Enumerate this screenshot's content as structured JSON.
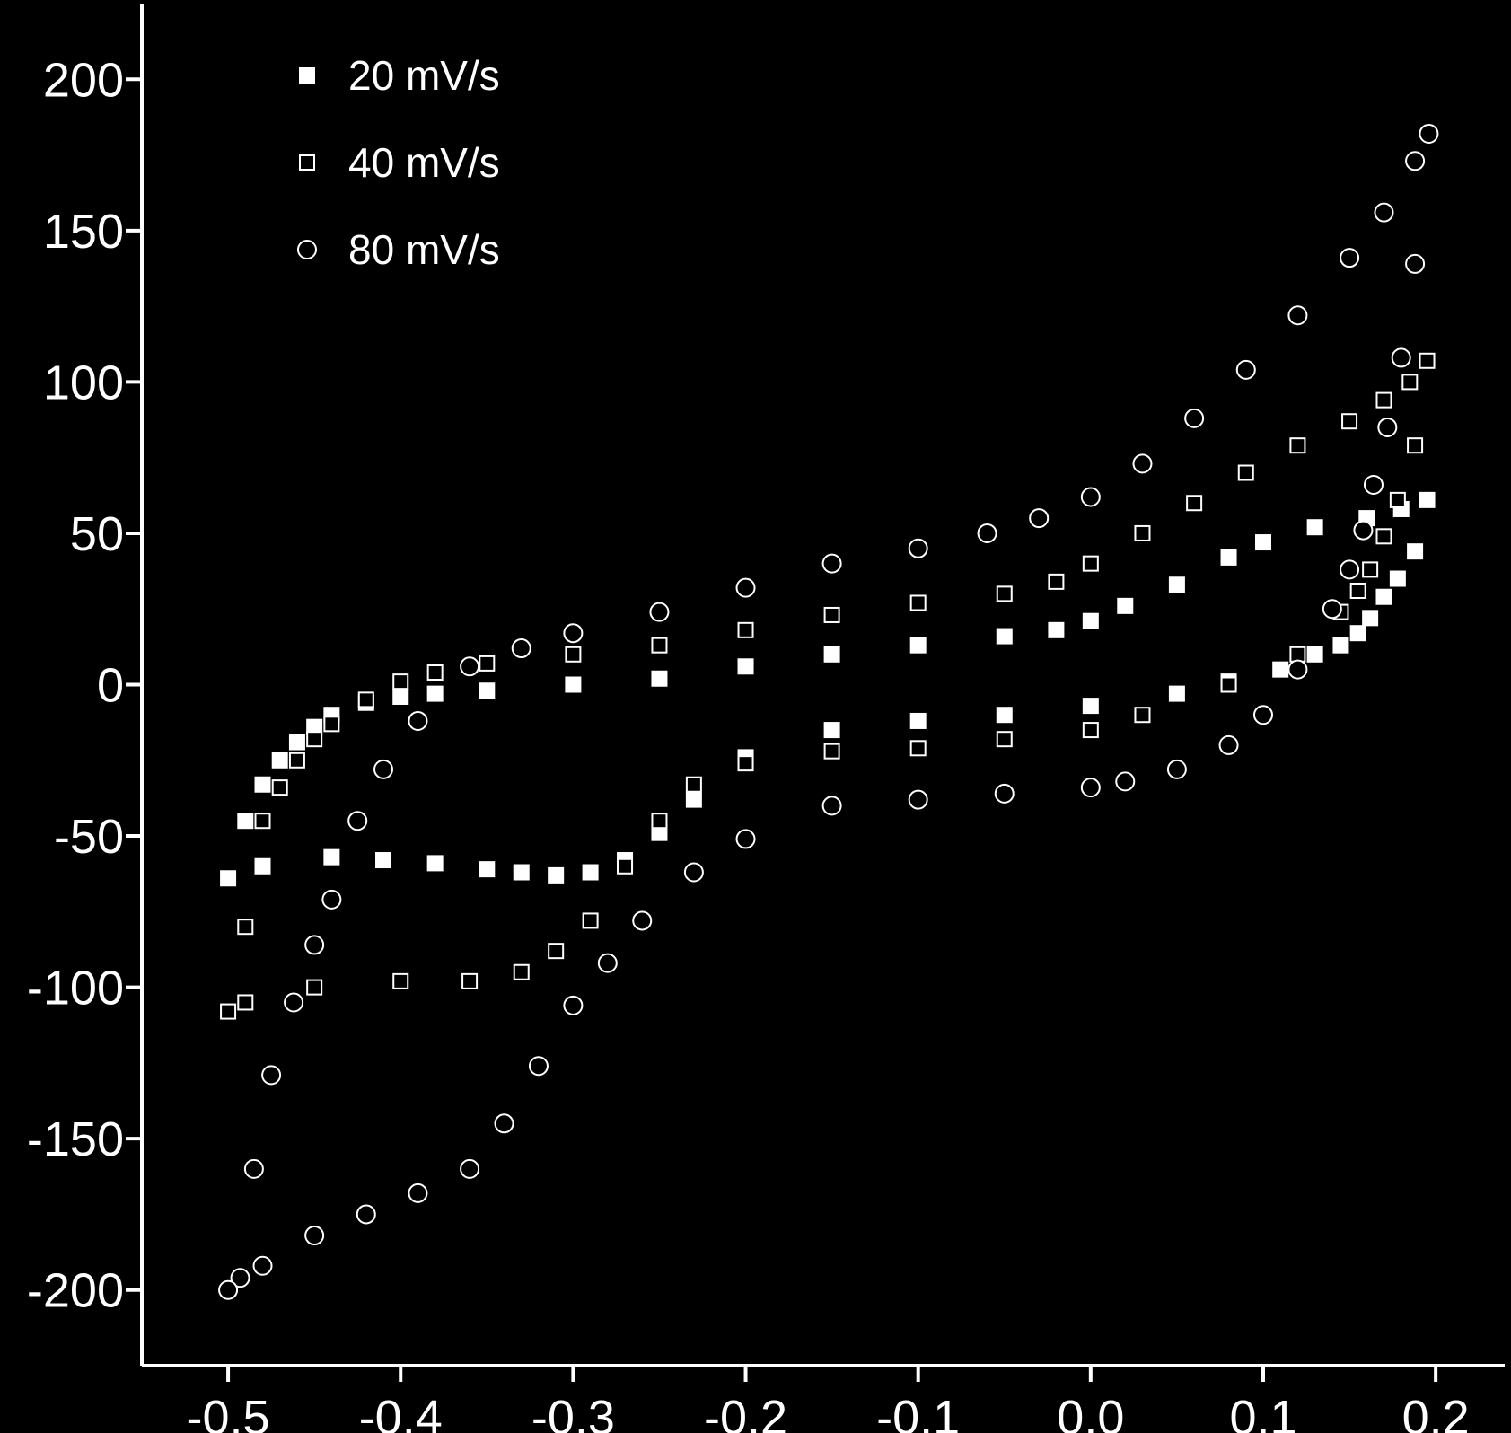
{
  "chart_data": {
    "type": "scatter",
    "title": "",
    "xlabel": "",
    "ylabel": "",
    "xlim": [
      -0.55,
      0.24
    ],
    "ylim": [
      -225,
      225
    ],
    "xticks": [
      -0.5,
      -0.4,
      -0.3,
      -0.2,
      -0.1,
      0.0,
      0.1,
      0.2
    ],
    "xtick_labels": [
      "-0.5",
      "-0.4",
      "-0.3",
      "-0.2",
      "-0.1",
      "0.0",
      "0.1",
      "0.2"
    ],
    "yticks": [
      -200,
      -150,
      -100,
      -50,
      0,
      50,
      100,
      150,
      200
    ],
    "ytick_labels": [
      "-200",
      "-150",
      "-100",
      "-50",
      "0",
      "50",
      "100",
      "150",
      "200"
    ],
    "grid": false,
    "legend_position": "top-left",
    "background_color": "#000000",
    "foreground_color": "#ffffff",
    "series": [
      {
        "name": "20 mV/s",
        "marker": "square-filled",
        "forward": {
          "x": [
            -0.49,
            -0.48,
            -0.47,
            -0.46,
            -0.45,
            -0.44,
            -0.42,
            -0.4,
            -0.38,
            -0.35,
            -0.3,
            -0.25,
            -0.2,
            -0.15,
            -0.1,
            -0.05,
            -0.02,
            0.0,
            0.02,
            0.05,
            0.08,
            0.1,
            0.13,
            0.16,
            0.18,
            0.195
          ],
          "y": [
            -45,
            -33,
            -25,
            -19,
            -14,
            -10,
            -6,
            -4,
            -3,
            -2,
            0,
            2,
            6,
            10,
            13,
            16,
            18,
            21,
            26,
            33,
            42,
            47,
            52,
            55,
            58,
            61
          ]
        },
        "reverse": {
          "x": [
            0.188,
            0.178,
            0.17,
            0.162,
            0.155,
            0.145,
            0.13,
            0.11,
            0.08,
            0.05,
            0.0,
            -0.05,
            -0.1,
            -0.15,
            -0.2,
            -0.23,
            -0.25,
            -0.27,
            -0.29,
            -0.31,
            -0.33,
            -0.35,
            -0.38,
            -0.41,
            -0.44,
            -0.48,
            -0.5
          ],
          "y": [
            44,
            35,
            29,
            22,
            17,
            13,
            10,
            5,
            1,
            -3,
            -7,
            -10,
            -12,
            -15,
            -24,
            -38,
            -49,
            -58,
            -62,
            -63,
            -62,
            -61,
            -59,
            -58,
            -57,
            -60,
            -64
          ]
        }
      },
      {
        "name": "40 mV/s",
        "marker": "square-open",
        "forward": {
          "x": [
            -0.49,
            -0.48,
            -0.47,
            -0.46,
            -0.45,
            -0.44,
            -0.42,
            -0.4,
            -0.38,
            -0.35,
            -0.3,
            -0.25,
            -0.2,
            -0.15,
            -0.1,
            -0.05,
            -0.02,
            0.0,
            0.03,
            0.06,
            0.09,
            0.12,
            0.15,
            0.17,
            0.185,
            0.195
          ],
          "y": [
            -80,
            -45,
            -34,
            -25,
            -18,
            -13,
            -5,
            1,
            4,
            7,
            10,
            13,
            18,
            23,
            27,
            30,
            34,
            40,
            50,
            60,
            70,
            79,
            87,
            94,
            100,
            107
          ]
        },
        "reverse": {
          "x": [
            0.188,
            0.178,
            0.17,
            0.162,
            0.155,
            0.145,
            0.12,
            0.08,
            0.03,
            0.0,
            -0.05,
            -0.1,
            -0.15,
            -0.2,
            -0.23,
            -0.25,
            -0.27,
            -0.29,
            -0.31,
            -0.33,
            -0.36,
            -0.4,
            -0.45,
            -0.49,
            -0.5
          ],
          "y": [
            79,
            61,
            49,
            38,
            31,
            24,
            10,
            0,
            -10,
            -15,
            -18,
            -21,
            -22,
            -26,
            -33,
            -45,
            -60,
            -78,
            -88,
            -95,
            -98,
            -98,
            -100,
            -105,
            -108
          ]
        }
      },
      {
        "name": "80 mV/s",
        "marker": "circle-open",
        "forward": {
          "x": [
            -0.493,
            -0.485,
            -0.475,
            -0.462,
            -0.45,
            -0.44,
            -0.425,
            -0.41,
            -0.39,
            -0.36,
            -0.33,
            -0.3,
            -0.25,
            -0.2,
            -0.15,
            -0.1,
            -0.06,
            -0.03,
            0.0,
            0.03,
            0.06,
            0.09,
            0.12,
            0.15,
            0.17,
            0.188,
            0.196
          ],
          "y": [
            -196,
            -160,
            -129,
            -105,
            -86,
            -71,
            -45,
            -28,
            -12,
            6,
            12,
            17,
            24,
            32,
            40,
            45,
            50,
            55,
            62,
            73,
            88,
            104,
            122,
            141,
            156,
            173,
            182
          ]
        },
        "reverse": {
          "x": [
            0.188,
            0.18,
            0.172,
            0.164,
            0.158,
            0.15,
            0.14,
            0.12,
            0.1,
            0.08,
            0.05,
            0.02,
            0.0,
            -0.05,
            -0.1,
            -0.15,
            -0.2,
            -0.23,
            -0.26,
            -0.28,
            -0.3,
            -0.32,
            -0.34,
            -0.36,
            -0.39,
            -0.42,
            -0.45,
            -0.48,
            -0.5
          ],
          "y": [
            139,
            108,
            85,
            66,
            51,
            38,
            25,
            5,
            -10,
            -20,
            -28,
            -32,
            -34,
            -36,
            -38,
            -40,
            -51,
            -62,
            -78,
            -92,
            -106,
            -126,
            -145,
            -160,
            -168,
            -175,
            -182,
            -192,
            -200
          ]
        }
      }
    ]
  }
}
